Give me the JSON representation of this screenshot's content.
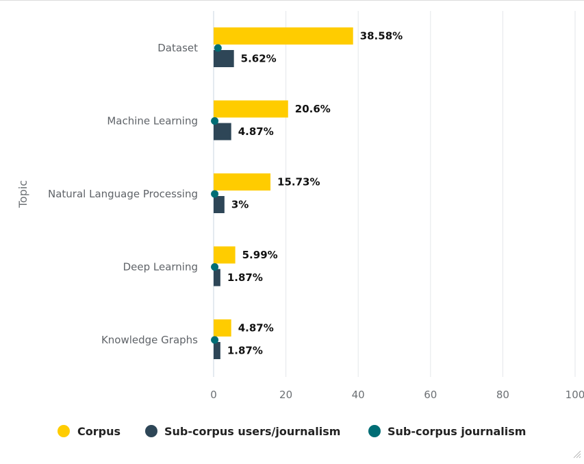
{
  "chart_data": {
    "type": "bar",
    "orientation": "horizontal",
    "title": "",
    "xlabel": "",
    "ylabel": "Topic",
    "categories": [
      "Dataset",
      "Machine Learning",
      "Natural Language Processing",
      "Deep Learning",
      "Knowledge Graphs"
    ],
    "series": [
      {
        "name": "Corpus",
        "mark": "bar",
        "color": "#ffcc00",
        "values": [
          38.58,
          20.6,
          15.73,
          5.99,
          4.87
        ],
        "labels": [
          "38.58%",
          "20.6%",
          "15.73%",
          "5.99%",
          "4.87%"
        ]
      },
      {
        "name": "Sub-corpus users/journalism",
        "mark": "bar",
        "color": "#2e4657",
        "values": [
          5.62,
          4.87,
          3,
          1.87,
          1.87
        ],
        "labels": [
          "5.62%",
          "4.87%",
          "3%",
          "1.87%",
          "1.87%"
        ]
      },
      {
        "name": "Sub-corpus journalism",
        "mark": "dot",
        "color": "#006d75",
        "values": [
          1.2,
          0.3,
          0.3,
          0.3,
          0.3
        ]
      }
    ],
    "xlim": [
      0,
      100
    ],
    "xticks": [
      0,
      20,
      40,
      60,
      80,
      100
    ],
    "grid": true,
    "legend": "bottom"
  }
}
